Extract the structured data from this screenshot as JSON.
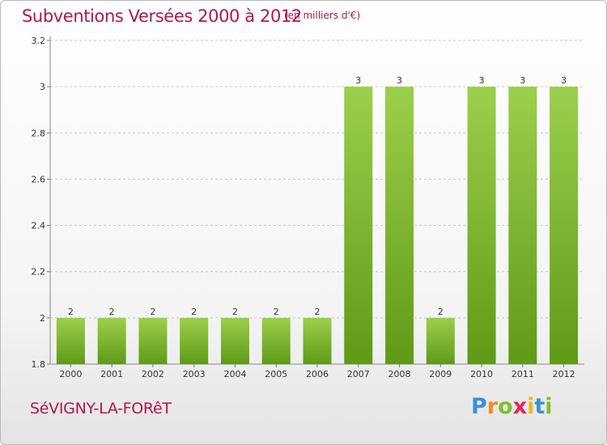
{
  "header": {
    "title": "Subventions Versées 2000 à 2012",
    "subtitle": "(en milliers d'€)"
  },
  "footer": {
    "place": "SéVIGNY-LA-FORêT",
    "logo_letters": [
      {
        "ch": "P",
        "color": "#3b8fd6"
      },
      {
        "ch": "r",
        "color": "#f28c1a"
      },
      {
        "ch": "o",
        "color": "#7fbf2a"
      },
      {
        "ch": "x",
        "color": "#e0255a"
      },
      {
        "ch": "i",
        "color": "#f2b81a"
      },
      {
        "ch": "t",
        "color": "#3b8fd6"
      },
      {
        "ch": "i",
        "color": "#7fbf2a"
      }
    ]
  },
  "colors": {
    "bar_top": "#9ccf4c",
    "bar_bottom": "#5f9a17",
    "title": "#b0174f"
  },
  "chart_data": {
    "type": "bar",
    "categories": [
      "2000",
      "2001",
      "2002",
      "2003",
      "2004",
      "2005",
      "2006",
      "2007",
      "2008",
      "2009",
      "2010",
      "2011",
      "2012"
    ],
    "values": [
      2,
      2,
      2,
      2,
      2,
      2,
      2,
      3,
      3,
      2,
      3,
      3,
      3
    ],
    "data_labels": [
      "2",
      "2",
      "2",
      "2",
      "2",
      "2",
      "2",
      "3",
      "3",
      "2",
      "3",
      "3",
      "3"
    ],
    "ylim": [
      1.8,
      3.2
    ],
    "yticks": [
      1.8,
      2,
      2.2,
      2.4,
      2.6,
      2.8,
      3,
      3.2
    ],
    "ytick_labels": [
      "1.8",
      "2",
      "2.2",
      "2.4",
      "2.6",
      "2.8",
      "3",
      "3.2"
    ],
    "grid": "horizontal dashed",
    "title": "Subventions Versées 2000 à 2012",
    "xlabel": "",
    "ylabel": ""
  }
}
